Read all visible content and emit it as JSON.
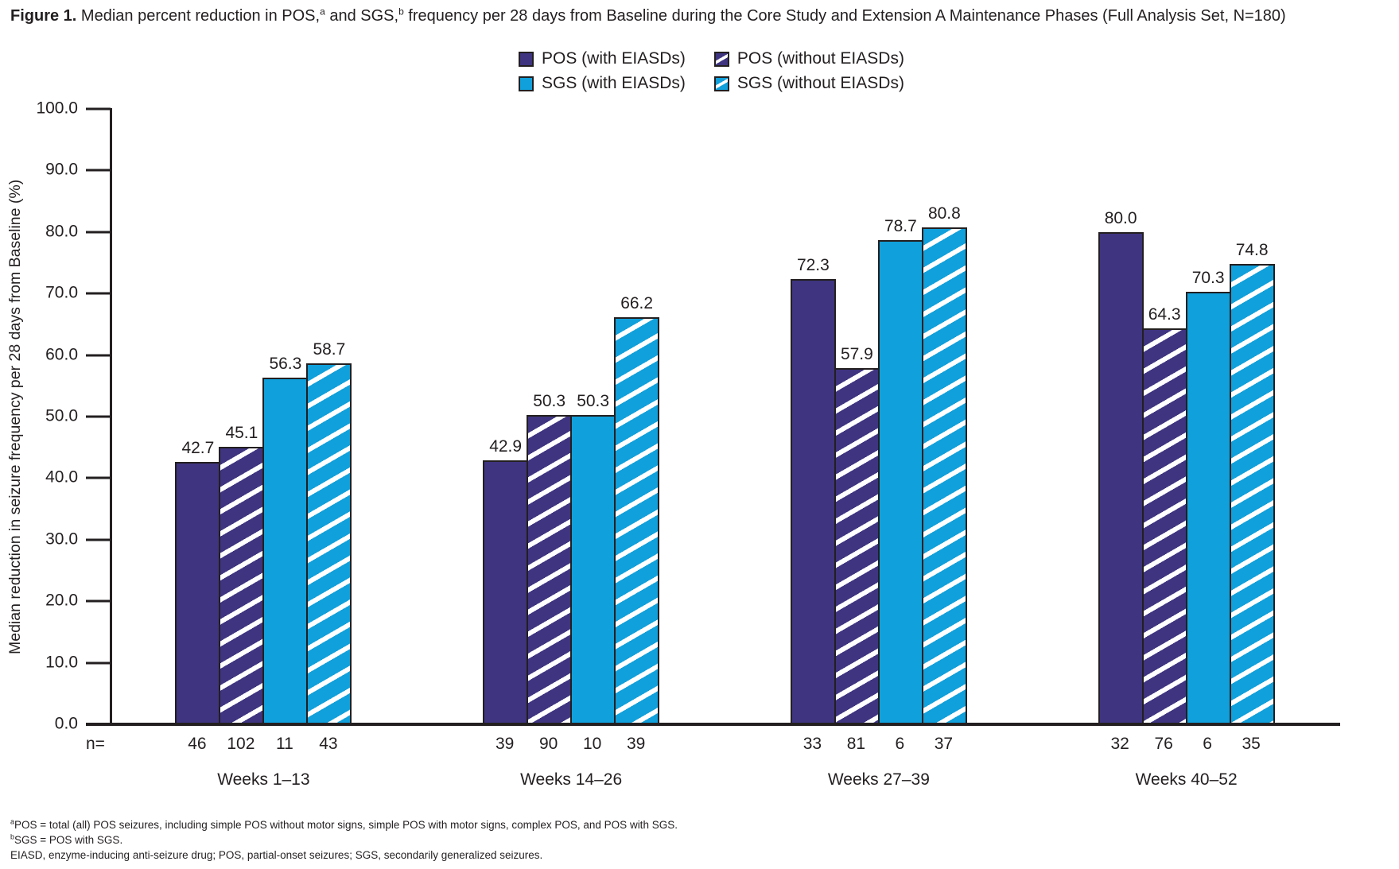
{
  "title": {
    "label": "Figure 1.",
    "part1": " Median percent reduction in POS,",
    "sup1": "a",
    "part2": " and SGS,",
    "sup2": "b",
    "part3": " frequency per 28 days from Baseline during the Core Study and Extension A Maintenance Phases (Full Analysis Set, N=180)"
  },
  "legend": {
    "items": [
      {
        "label": "POS (with EIASDs)",
        "style": "solid-purple"
      },
      {
        "label": "POS (without EIASDs)",
        "style": "striped-purple"
      },
      {
        "label": "SGS (with EIASDs)",
        "style": "solid-cyan"
      },
      {
        "label": "SGS (without EIASDs)",
        "style": "striped-cyan"
      }
    ]
  },
  "colors": {
    "pos_purple": "#3E3480",
    "sgs_cyan": "#10A0DB",
    "ink": "#231F20"
  },
  "chart_data": {
    "type": "bar",
    "title": "Median percent reduction in POS and SGS frequency per 28 days from Baseline during the Core Study and Extension A Maintenance Phases (Full Analysis Set, N=180)",
    "ylabel": "Median reduction in seizure frequency per 28 days from Baseline (%)",
    "xlabel": "",
    "ylim": [
      0,
      100
    ],
    "yticks": [
      100,
      90,
      80,
      70,
      60,
      50,
      40,
      30,
      20,
      10,
      0
    ],
    "grid": false,
    "legend_position": "top-center",
    "n_label": "n=",
    "categories": [
      "Weeks 1–13",
      "Weeks 14–26",
      "Weeks 27–39",
      "Weeks 40–52"
    ],
    "series": [
      {
        "name": "POS (with EIASDs)",
        "style": "solid-purple",
        "values": [
          42.7,
          42.9,
          72.3,
          80.0
        ],
        "n": [
          46,
          39,
          33,
          32
        ]
      },
      {
        "name": "POS (without EIASDs)",
        "style": "striped-purple",
        "values": [
          45.1,
          50.3,
          57.9,
          64.3
        ],
        "n": [
          102,
          90,
          81,
          76
        ]
      },
      {
        "name": "SGS (with EIASDs)",
        "style": "solid-cyan",
        "values": [
          56.3,
          50.3,
          78.7,
          70.3
        ],
        "n": [
          11,
          10,
          6,
          6
        ]
      },
      {
        "name": "SGS (without EIASDs)",
        "style": "striped-cyan",
        "values": [
          58.7,
          66.2,
          80.8,
          74.8
        ],
        "n": [
          43,
          39,
          37,
          35
        ]
      }
    ]
  },
  "footnotes": {
    "line1_sup": "a",
    "line1": "POS = total (all) POS seizures, including simple POS without motor signs, simple POS with motor signs, complex POS, and POS with SGS.",
    "line2_sup": "b",
    "line2": "SGS = POS with SGS.",
    "line3": "EIASD, enzyme-inducing anti-seizure drug; POS, partial-onset seizures; SGS, secondarily generalized seizures."
  }
}
